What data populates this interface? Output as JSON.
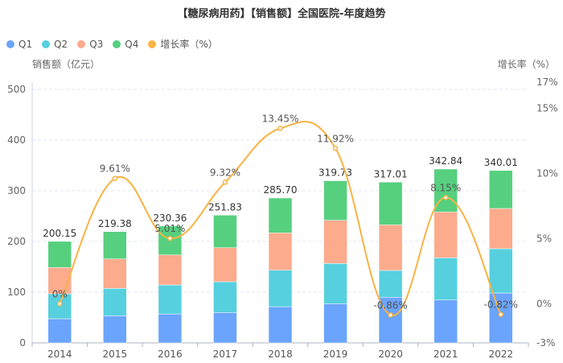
{
  "chart_data": {
    "type": "bar",
    "title": "【糖尿病用药】【销售额】全国医院-年度趋势",
    "categories": [
      "2014",
      "2015",
      "2016",
      "2017",
      "2018",
      "2019",
      "2020",
      "2021",
      "2022"
    ],
    "series": [
      {
        "name": "Q1",
        "color": "#6aa4fc",
        "values": [
          47.6,
          53.4,
          57.0,
          59.8,
          71.4,
          77.2,
          90.0,
          84.6,
          98.4
        ]
      },
      {
        "name": "Q2",
        "color": "#56d0de",
        "values": [
          49.2,
          54.0,
          57.3,
          60.8,
          71.9,
          79.4,
          52.9,
          83.1,
          87.3
        ]
      },
      {
        "name": "Q3",
        "color": "#fcab8d",
        "values": [
          51.9,
          58.2,
          59.2,
          67.2,
          73.7,
          85.2,
          89.9,
          90.5,
          79.4
        ]
      },
      {
        "name": "Q4",
        "color": "#56d07e",
        "values": [
          51.45,
          53.78,
          56.86,
          64.03,
          68.7,
          77.93,
          84.21,
          84.64,
          74.91
        ]
      }
    ],
    "totals": [
      "200.15",
      "219.38",
      "230.36",
      "251.83",
      "285.70",
      "319.73",
      "317.01",
      "342.84",
      "340.01"
    ],
    "line": {
      "name": "增长率（%）",
      "color": "#f8b344",
      "values": [
        0,
        9.61,
        5.01,
        9.32,
        13.45,
        11.92,
        -0.86,
        8.15,
        -0.82
      ],
      "labels": [
        "0%",
        "9.61%",
        "5.01%",
        "9.32%",
        "13.45%",
        "11.92%",
        "-0.86%",
        "8.15%",
        "-0.82%"
      ]
    },
    "ylabel": "销售额（亿元）",
    "y2label": "增长率（%）",
    "ylim": [
      0,
      500
    ],
    "yticks": [
      "0",
      "100",
      "200",
      "300",
      "400",
      "500"
    ],
    "y2lim": [
      -3,
      17
    ],
    "y2ticks": [
      {
        "v": -3,
        "t": "-3%"
      },
      {
        "v": 0,
        "t": "0%"
      },
      {
        "v": 5,
        "t": "5%"
      },
      {
        "v": 10,
        "t": "10%"
      },
      {
        "v": 15,
        "t": "15%"
      },
      {
        "v": 17,
        "t": "17%"
      }
    ],
    "grid": true,
    "legend_position": "top-left"
  }
}
